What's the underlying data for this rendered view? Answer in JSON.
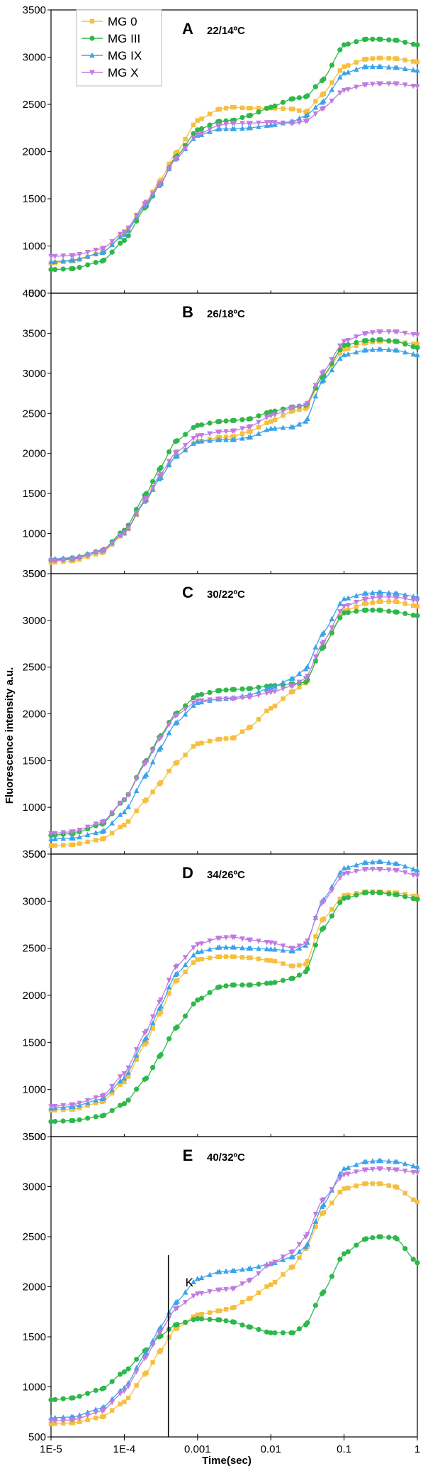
{
  "axis": {
    "ylabel": "Fluorescence intensity a.u.",
    "xlabel": "Time(sec)",
    "x_ticks": [
      1e-05,
      0.0001,
      0.001,
      0.01,
      0.1,
      1
    ],
    "x_tick_labels": [
      "1E-5",
      "1E-4",
      "0.001",
      "0.01",
      "0.1",
      "1"
    ],
    "x_scale": "log",
    "xlim": [
      1e-05,
      1
    ]
  },
  "legend": {
    "placement": "top-left of panel A",
    "entries": [
      {
        "label": "MG 0",
        "color": "#F5C040",
        "marker": "square"
      },
      {
        "label": "MG III",
        "color": "#2DB84B",
        "marker": "circle"
      },
      {
        "label": "MG IX",
        "color": "#3BA3EA",
        "marker": "triangle-up"
      },
      {
        "label": "MG X",
        "color": "#C07BE0",
        "marker": "triangle-down"
      }
    ]
  },
  "chart_data": [
    {
      "type": "line",
      "panel": "A",
      "title": "22/14ºC",
      "ylim": [
        500,
        3500
      ],
      "y_ticks": [
        500,
        1000,
        1500,
        2000,
        2500,
        3000,
        3500
      ],
      "x": [
        1e-05,
        2e-05,
        5e-05,
        0.0001,
        0.0002,
        0.0003,
        0.0005,
        0.001,
        0.002,
        0.003,
        0.005,
        0.01,
        0.02,
        0.03,
        0.05,
        0.1,
        0.2,
        0.3,
        0.5,
        1
      ],
      "series": [
        {
          "name": "MG 0",
          "values": [
            820,
            840,
            930,
            1130,
            1470,
            1680,
            1980,
            2330,
            2450,
            2470,
            2460,
            2460,
            2450,
            2420,
            2600,
            2900,
            2980,
            2990,
            2985,
            2950
          ]
        },
        {
          "name": "MG III",
          "values": [
            750,
            760,
            840,
            1060,
            1420,
            1640,
            1940,
            2230,
            2320,
            2330,
            2380,
            2470,
            2560,
            2580,
            2750,
            3130,
            3190,
            3190,
            3180,
            3130
          ]
        },
        {
          "name": "MG IX",
          "values": [
            830,
            850,
            930,
            1120,
            1440,
            1640,
            1920,
            2170,
            2240,
            2240,
            2250,
            2280,
            2320,
            2380,
            2520,
            2830,
            2900,
            2900,
            2890,
            2860
          ]
        },
        {
          "name": "MG X",
          "values": [
            890,
            900,
            970,
            1150,
            1460,
            1650,
            1920,
            2180,
            2280,
            2300,
            2300,
            2310,
            2300,
            2320,
            2450,
            2650,
            2710,
            2720,
            2720,
            2690
          ]
        }
      ]
    },
    {
      "type": "line",
      "panel": "B",
      "title": "26/18ºC",
      "ylim": [
        500,
        4000
      ],
      "y_ticks": [
        500,
        1000,
        1500,
        2000,
        2500,
        3000,
        3500,
        4000
      ],
      "x": [
        1e-05,
        2e-05,
        5e-05,
        0.0001,
        0.0002,
        0.0003,
        0.0005,
        0.001,
        0.002,
        0.003,
        0.005,
        0.01,
        0.02,
        0.03,
        0.05,
        0.1,
        0.2,
        0.3,
        0.5,
        1
      ],
      "series": [
        {
          "name": "MG 0",
          "values": [
            640,
            660,
            760,
            1000,
            1420,
            1680,
            1960,
            2150,
            2200,
            2210,
            2270,
            2400,
            2530,
            2560,
            2950,
            3300,
            3380,
            3400,
            3400,
            3360
          ]
        },
        {
          "name": "MG III",
          "values": [
            670,
            690,
            790,
            1040,
            1500,
            1800,
            2150,
            2350,
            2400,
            2410,
            2430,
            2520,
            2580,
            2600,
            2950,
            3350,
            3410,
            3420,
            3400,
            3320
          ]
        },
        {
          "name": "MG IX",
          "values": [
            680,
            700,
            790,
            1010,
            1420,
            1680,
            1960,
            2150,
            2170,
            2170,
            2200,
            2310,
            2330,
            2400,
            2900,
            3230,
            3290,
            3300,
            3290,
            3230
          ]
        },
        {
          "name": "MG X",
          "values": [
            660,
            680,
            780,
            1010,
            1440,
            1720,
            2010,
            2220,
            2270,
            2280,
            2330,
            2470,
            2570,
            2600,
            3000,
            3400,
            3500,
            3520,
            3520,
            3480
          ]
        }
      ]
    },
    {
      "type": "line",
      "panel": "C",
      "title": "30/22ºC",
      "ylim": [
        500,
        3500
      ],
      "y_ticks": [
        500,
        1000,
        1500,
        2000,
        2500,
        3000,
        3500
      ],
      "x": [
        1e-05,
        2e-05,
        5e-05,
        0.0001,
        0.0002,
        0.0003,
        0.0005,
        0.001,
        0.002,
        0.003,
        0.005,
        0.01,
        0.02,
        0.03,
        0.05,
        0.1,
        0.2,
        0.3,
        0.5,
        1
      ],
      "series": [
        {
          "name": "MG 0",
          "values": [
            590,
            600,
            660,
            810,
            1080,
            1250,
            1470,
            1680,
            1730,
            1740,
            1850,
            2060,
            2240,
            2330,
            2700,
            3100,
            3180,
            3200,
            3200,
            3150
          ]
        },
        {
          "name": "MG III",
          "values": [
            700,
            720,
            820,
            1080,
            1500,
            1750,
            2000,
            2200,
            2250,
            2260,
            2270,
            2300,
            2320,
            2340,
            2700,
            3080,
            3110,
            3110,
            3090,
            3050
          ]
        },
        {
          "name": "MG IX",
          "values": [
            660,
            670,
            740,
            950,
            1350,
            1620,
            1900,
            2120,
            2160,
            2170,
            2200,
            2280,
            2380,
            2480,
            2850,
            3230,
            3290,
            3300,
            3290,
            3250
          ]
        },
        {
          "name": "MG X",
          "values": [
            720,
            740,
            840,
            1080,
            1480,
            1730,
            1980,
            2140,
            2160,
            2160,
            2180,
            2230,
            2300,
            2380,
            2750,
            3150,
            3230,
            3250,
            3250,
            3210
          ]
        }
      ]
    },
    {
      "type": "line",
      "panel": "D",
      "title": "34/26ºC",
      "ylim": [
        500,
        3500
      ],
      "y_ticks": [
        500,
        1000,
        1500,
        2000,
        2500,
        3000,
        3500
      ],
      "x": [
        1e-05,
        2e-05,
        5e-05,
        0.0001,
        0.0002,
        0.0003,
        0.0005,
        0.001,
        0.002,
        0.003,
        0.005,
        0.01,
        0.02,
        0.03,
        0.05,
        0.1,
        0.2,
        0.3,
        0.5,
        1
      ],
      "series": [
        {
          "name": "MG 0",
          "values": [
            780,
            790,
            870,
            1080,
            1500,
            1800,
            2150,
            2380,
            2410,
            2410,
            2400,
            2370,
            2310,
            2330,
            2800,
            3060,
            3100,
            3100,
            3090,
            3050
          ]
        },
        {
          "name": "MG III",
          "values": [
            660,
            670,
            720,
            850,
            1120,
            1350,
            1650,
            1950,
            2090,
            2110,
            2110,
            2130,
            2180,
            2250,
            2700,
            3030,
            3090,
            3090,
            3070,
            3020
          ]
        },
        {
          "name": "MG IX",
          "values": [
            800,
            820,
            900,
            1120,
            1550,
            1860,
            2220,
            2460,
            2510,
            2510,
            2500,
            2490,
            2470,
            2530,
            3000,
            3350,
            3410,
            3420,
            3400,
            3330
          ]
        },
        {
          "name": "MG X",
          "values": [
            820,
            840,
            930,
            1170,
            1620,
            1930,
            2300,
            2540,
            2610,
            2620,
            2590,
            2560,
            2500,
            2550,
            2980,
            3290,
            3340,
            3340,
            3330,
            3270
          ]
        }
      ]
    },
    {
      "type": "line",
      "panel": "E",
      "title": "40/32ºC",
      "ylim": [
        500,
        3500
      ],
      "y_ticks": [
        500,
        1000,
        1500,
        2000,
        2500,
        3000,
        3500
      ],
      "x": [
        1e-05,
        2e-05,
        5e-05,
        0.0001,
        0.0002,
        0.0003,
        0.0005,
        0.001,
        0.002,
        0.003,
        0.005,
        0.01,
        0.02,
        0.03,
        0.05,
        0.1,
        0.2,
        0.3,
        0.5,
        1
      ],
      "series": [
        {
          "name": "MG 0",
          "values": [
            630,
            640,
            700,
            850,
            1140,
            1350,
            1580,
            1720,
            1760,
            1790,
            1880,
            2020,
            2200,
            2380,
            2730,
            2980,
            3030,
            3030,
            3000,
            2850
          ]
        },
        {
          "name": "MG III",
          "values": [
            870,
            890,
            980,
            1150,
            1370,
            1500,
            1620,
            1680,
            1670,
            1650,
            1600,
            1540,
            1540,
            1620,
            1930,
            2330,
            2480,
            2500,
            2490,
            2240
          ]
        },
        {
          "name": "MG IX",
          "values": [
            690,
            700,
            790,
            990,
            1340,
            1580,
            1840,
            2080,
            2150,
            2160,
            2180,
            2230,
            2300,
            2400,
            2800,
            3180,
            3250,
            3260,
            3250,
            3200
          ]
        },
        {
          "name": "MG X",
          "values": [
            660,
            670,
            760,
            960,
            1300,
            1540,
            1780,
            1930,
            1970,
            1980,
            2060,
            2230,
            2350,
            2500,
            2860,
            3120,
            3170,
            3180,
            3170,
            3140
          ]
        }
      ]
    }
  ],
  "annotation": {
    "label": "K",
    "x": 0.0004,
    "panel": "E"
  }
}
